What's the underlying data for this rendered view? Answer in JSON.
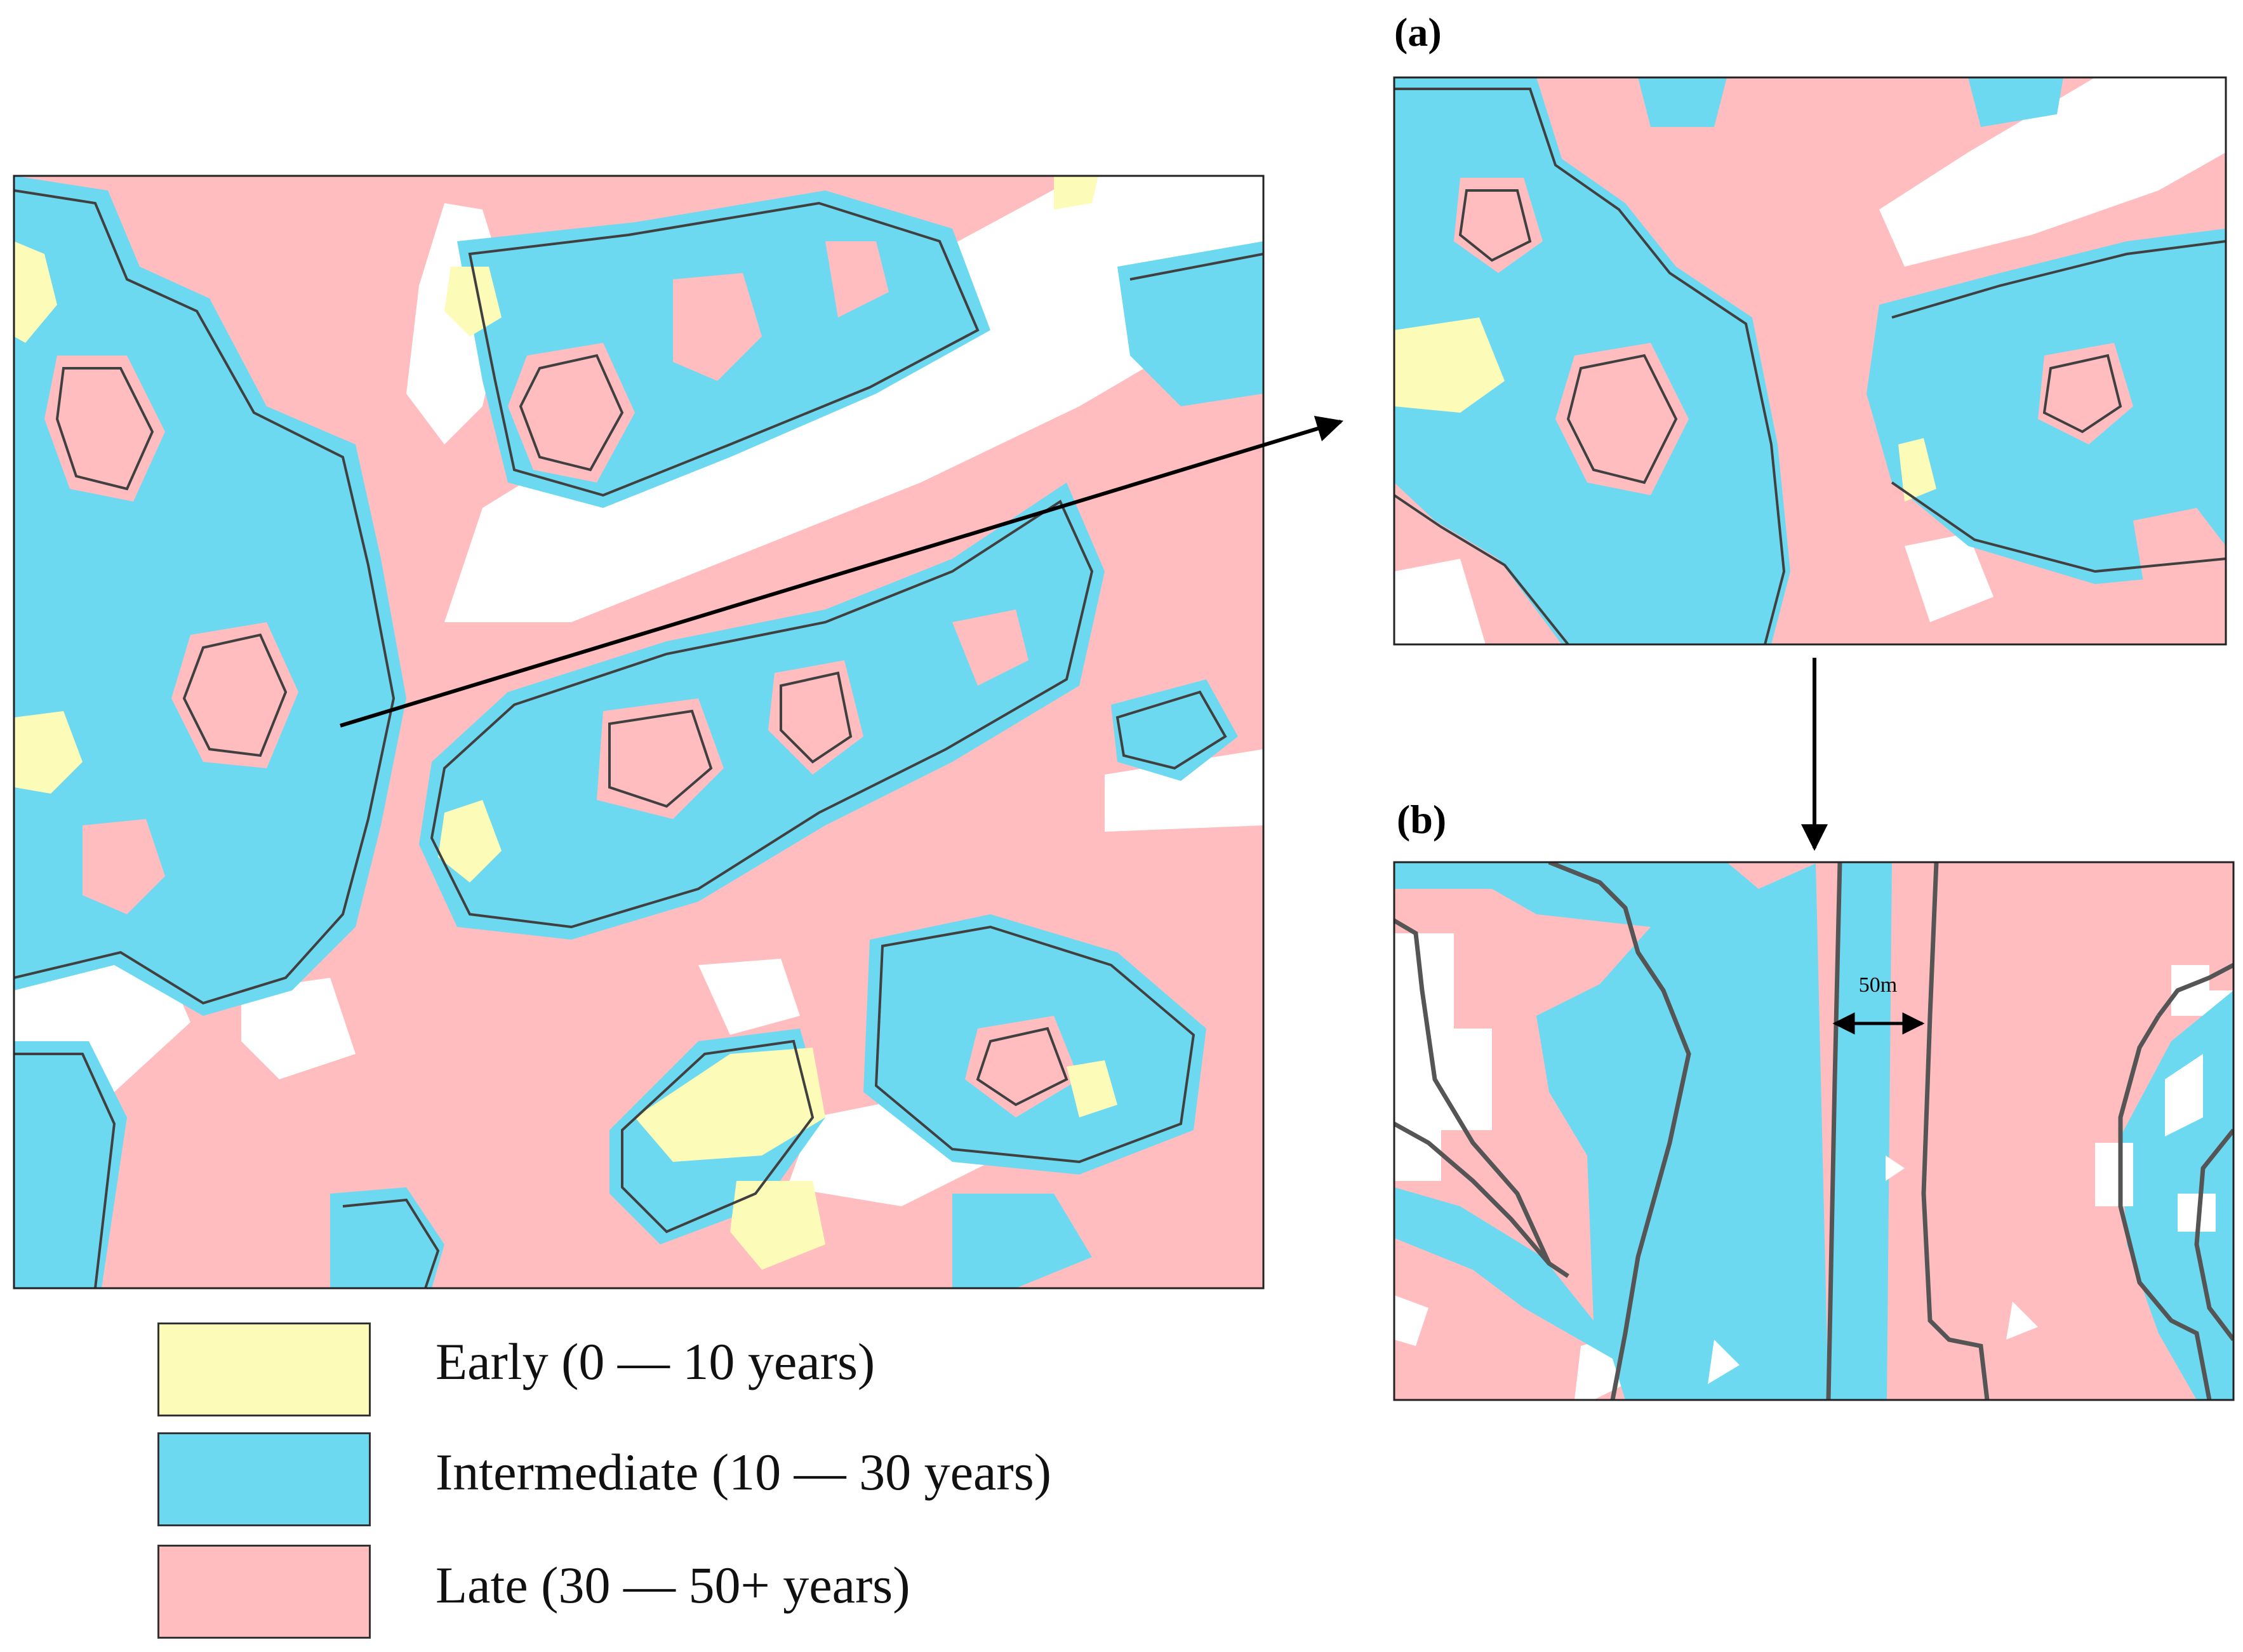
{
  "figure": {
    "panels": [
      {
        "id": "a",
        "label": "(a)"
      },
      {
        "id": "b",
        "label": "(b)",
        "scale_label": "50m"
      }
    ]
  },
  "legend": {
    "items": [
      {
        "label": "Early (0 — 10 years)",
        "color": "#fdfbb8"
      },
      {
        "label": "Intermediate (10 — 30 years)",
        "color": "#6dd9f0"
      },
      {
        "label": "Late (30 — 50+ years)",
        "color": "#ffbdc0"
      }
    ]
  },
  "colors": {
    "early": "#fdfbb8",
    "intermediate": "#6dd9f0",
    "late": "#ffbdc0",
    "contour": "#404040",
    "background": "#ffffff"
  }
}
